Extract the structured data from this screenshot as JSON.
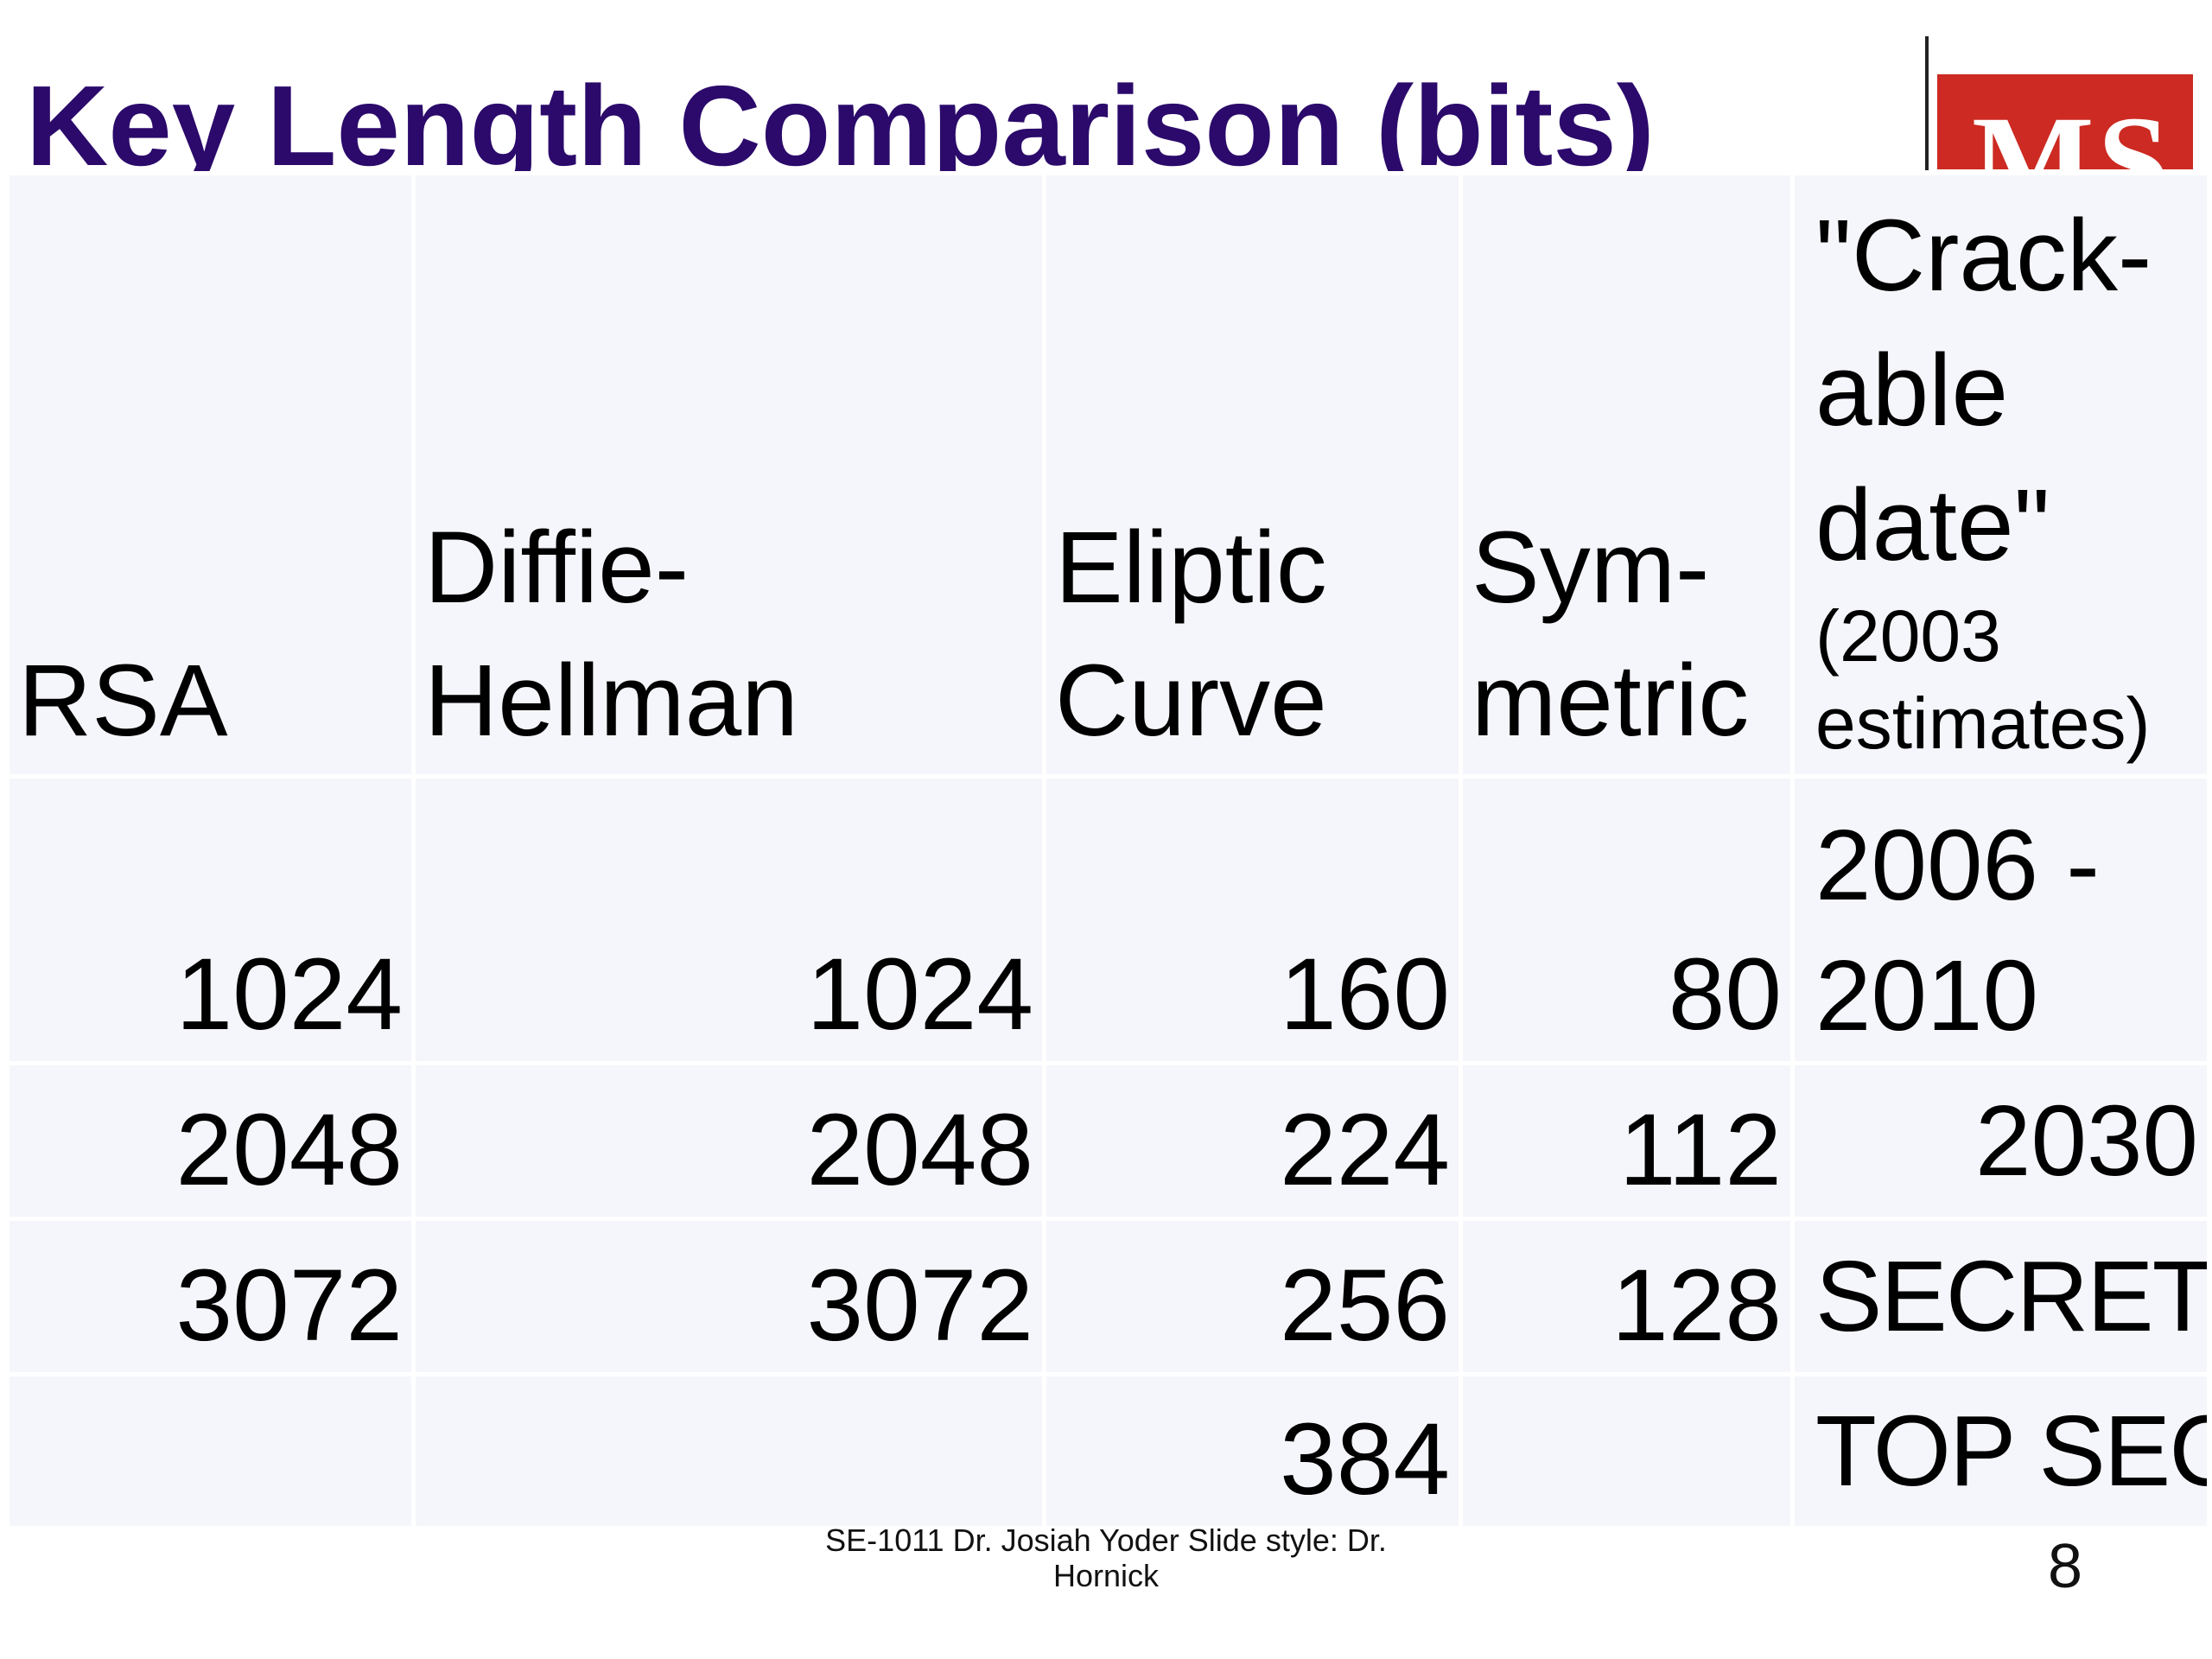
{
  "slide": {
    "title": "Key Length Comparison (bits)",
    "logo_text": "MS",
    "footer": "SE-1011 Dr. Josiah Yoder Slide style: Dr. Hornick",
    "page_number": "8"
  },
  "table": {
    "headers": {
      "rsa": "RSA",
      "dh_line1": "Diffie-",
      "dh_line2": "Hellman",
      "ec_line1": "Eliptic",
      "ec_line2": "Curve",
      "sym_line1": "Sym-",
      "sym_line2": "metric",
      "date_line1": "\"Crack-",
      "date_line2": "able",
      "date_line3": "date\"",
      "date_note1": "(2003",
      "date_note2": "estimates)"
    },
    "rows": [
      {
        "rsa": "1024",
        "dh": "1024",
        "ec": "160",
        "sym": "80",
        "date_line1": "2006 -",
        "date_line2": "2010"
      },
      {
        "rsa": "2048",
        "dh": "2048",
        "ec": "224",
        "sym": "112",
        "date": "2030"
      },
      {
        "rsa": "3072",
        "dh": "3072",
        "ec": "256",
        "sym": "128",
        "date": "SECRET"
      },
      {
        "rsa": "",
        "dh": "",
        "ec": "384",
        "sym": "",
        "date": "TOP SEC"
      }
    ]
  },
  "colors": {
    "title": "#2b0a6b",
    "logo_background": "#cc2a22",
    "cell_background": "#f5f6fb"
  }
}
